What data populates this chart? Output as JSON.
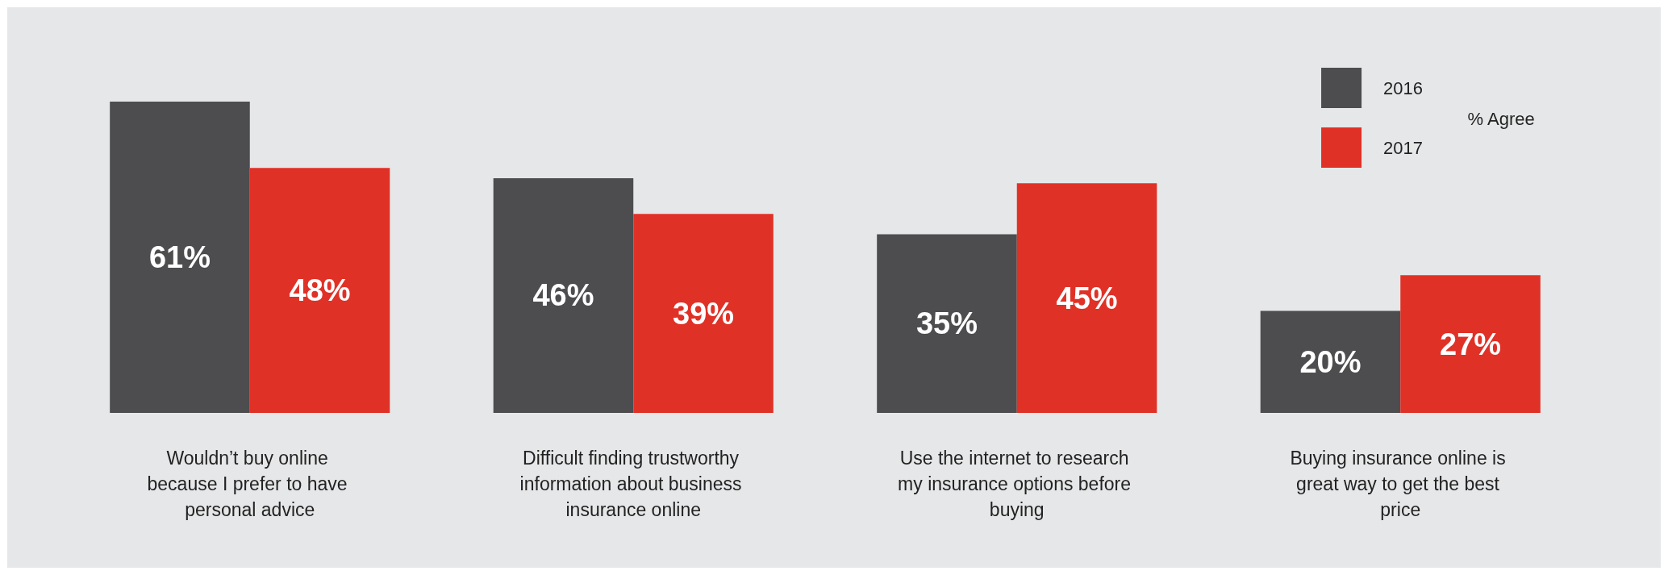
{
  "chart_data": {
    "type": "bar",
    "categories": [
      "Wouldn’t buy online because I prefer to have personal advice",
      "Difficult finding trustworthy information about business insurance online",
      "Use the internet to research my insurance options before buying",
      "Buying insurance online is great way to get the best price"
    ],
    "series": [
      {
        "name": "2016",
        "color": "#4d4d4f",
        "values": [
          61,
          46,
          35,
          20
        ],
        "value_labels": [
          "61%",
          "46%",
          "35%",
          "20%"
        ]
      },
      {
        "name": "2017",
        "color": "#e03127",
        "values": [
          48,
          39,
          45,
          27
        ],
        "value_labels": [
          "48%",
          "39%",
          "45%",
          "27%"
        ]
      }
    ],
    "legend": "top right",
    "legend_title": "% Agree"
  }
}
